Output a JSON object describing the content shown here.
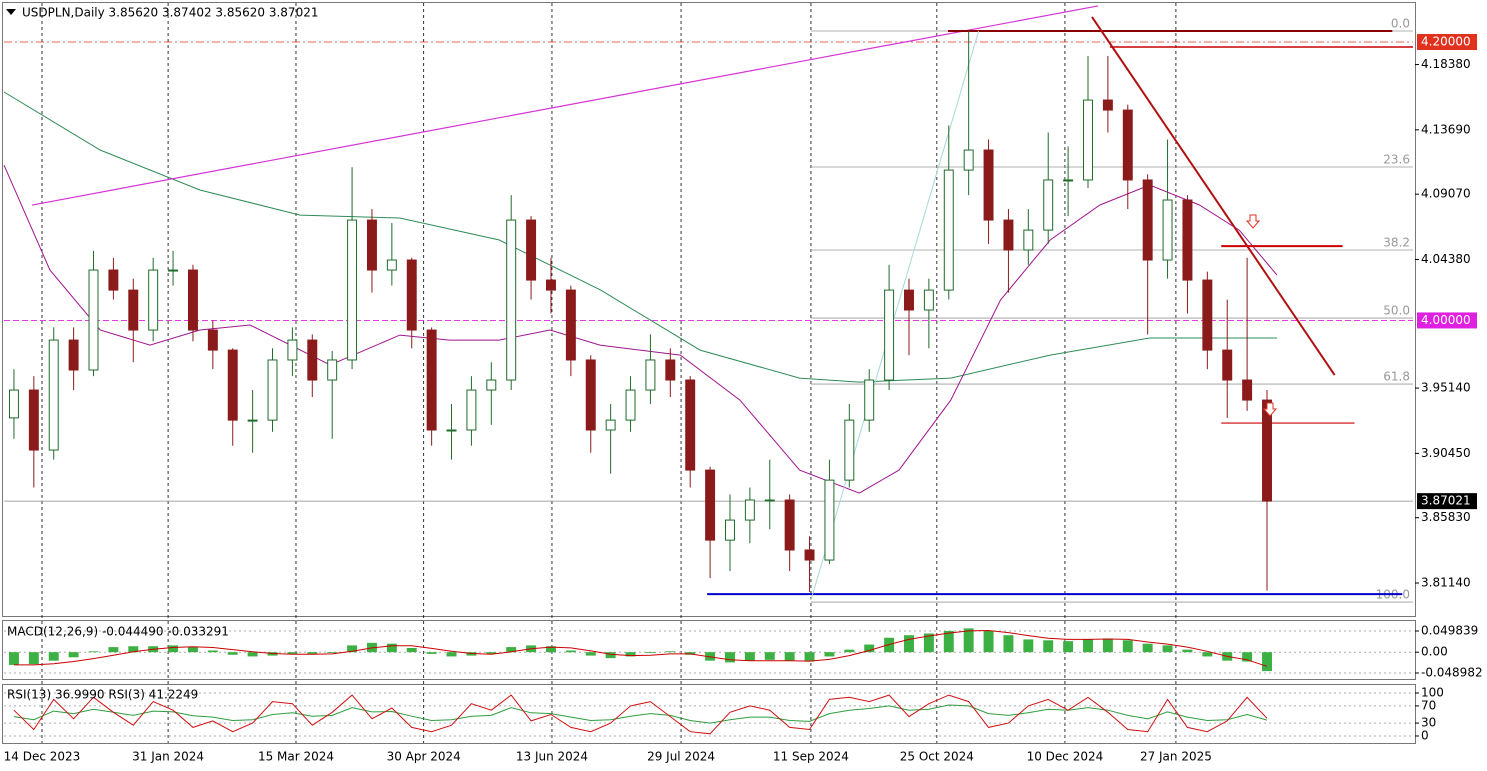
{
  "chart_data": [
    {
      "type": "candlestick",
      "title": "USDPLN,Daily  3.85620 3.87402 3.85620 3.87021",
      "xlim": [
        -0.5,
        70.34
      ],
      "ylim": [
        3.7877,
        4.2273
      ],
      "yticks": [
        {
          "value": 4.1838,
          "label": "4.18380"
        },
        {
          "value": 4.1369,
          "label": "4.13690"
        },
        {
          "value": 4.0907,
          "label": "4.09070"
        },
        {
          "value": 4.0438,
          "label": "4.04380"
        },
        {
          "value": 3.9514,
          "label": "3.95140"
        },
        {
          "value": 3.9045,
          "label": "3.90450"
        },
        {
          "value": 3.8583,
          "label": "3.85830"
        },
        {
          "value": 3.8114,
          "label": "3.81140"
        }
      ],
      "xticks": [
        {
          "value": 1.41,
          "label": "14 Dec 2023"
        },
        {
          "value": 7.75,
          "label": "31 Jan 2024"
        },
        {
          "value": 14.18,
          "label": "15 Mar 2024"
        },
        {
          "value": 20.6,
          "label": "30 Apr 2024"
        },
        {
          "value": 27.05,
          "label": "13 Jun 2024"
        },
        {
          "value": 33.54,
          "label": "29 Jul 2024"
        },
        {
          "value": 40.07,
          "label": "11 Sep 2024"
        },
        {
          "value": 46.4,
          "label": "25 Oct 2024"
        },
        {
          "value": 52.84,
          "label": "10 Dec 2024"
        },
        {
          "value": 58.42,
          "label": "27 Jan 2025"
        }
      ],
      "up_color": "#1f6b2a",
      "down_color": "#8b1a1a",
      "open": [
        3.93,
        3.95,
        3.9069,
        3.9859,
        3.9644,
        4.0362,
        4.0218,
        3.9931,
        4.0362,
        4.0362,
        3.9931,
        3.9787,
        3.9284,
        3.9284,
        3.9716,
        3.9859,
        3.9572,
        3.9716,
        4.0721,
        4.0362,
        4.0434,
        3.9931,
        3.9213,
        3.9213,
        3.95,
        3.9572,
        4.0721,
        4.029,
        4.0218,
        3.9716,
        3.9213,
        3.9284,
        3.95,
        3.9716,
        3.9572,
        3.8925,
        3.8422,
        3.8566,
        3.871,
        3.871,
        3.8351,
        3.8279,
        3.8853,
        3.9284,
        3.9572,
        4.0218,
        4.0075,
        4.0218,
        4.108,
        4.1224,
        4.0721,
        4.0506,
        4.0649,
        4.1009,
        4.1009,
        4.1583,
        4.1511,
        4.1009,
        4.0434,
        4.0865,
        4.029,
        3.9787,
        3.9572,
        3.9428
      ],
      "high": [
        3.965,
        3.96,
        3.995,
        3.995,
        4.05,
        4.045,
        4.03,
        4.045,
        4.05,
        4.04,
        4.0,
        3.98,
        3.95,
        3.98,
        3.995,
        3.99,
        3.978,
        4.11,
        4.08,
        4.07,
        4.045,
        3.995,
        3.94,
        3.96,
        3.97,
        4.09,
        4.075,
        4.045,
        4.025,
        3.975,
        3.94,
        3.96,
        3.99,
        3.98,
        3.96,
        3.895,
        3.875,
        3.88,
        3.9,
        3.875,
        3.845,
        3.9,
        3.94,
        3.965,
        4.04,
        4.03,
        4.03,
        4.14,
        4.2079,
        4.13,
        4.08,
        4.08,
        4.135,
        4.125,
        4.19,
        4.19,
        4.155,
        4.105,
        4.13,
        4.09,
        4.035,
        4.015,
        4.045,
        3.95
      ],
      "low": [
        3.915,
        3.88,
        3.9,
        3.95,
        3.96,
        4.015,
        3.97,
        3.985,
        4.025,
        3.985,
        3.965,
        3.91,
        3.905,
        3.92,
        3.96,
        3.945,
        3.915,
        3.965,
        4.02,
        4.025,
        3.98,
        3.91,
        3.9,
        3.91,
        3.925,
        3.95,
        4.015,
        4.005,
        3.96,
        3.905,
        3.89,
        3.92,
        3.94,
        3.945,
        3.88,
        3.815,
        3.82,
        3.84,
        3.85,
        3.82,
        3.805,
        3.825,
        3.88,
        3.92,
        3.95,
        3.975,
        3.98,
        4.015,
        4.09,
        4.055,
        4.02,
        4.04,
        4.055,
        4.075,
        4.095,
        4.135,
        4.08,
        3.99,
        4.03,
        4.005,
        3.965,
        3.93,
        3.935,
        3.806
      ],
      "close": [
        3.95,
        3.9069,
        3.9859,
        3.9644,
        4.0362,
        4.0218,
        3.9931,
        4.0362,
        4.0362,
        3.9931,
        3.9787,
        3.9284,
        3.9284,
        3.9716,
        3.9859,
        3.9572,
        3.9716,
        4.0721,
        4.0362,
        4.0434,
        3.9931,
        3.9213,
        3.9213,
        3.95,
        3.9572,
        4.0721,
        4.029,
        4.0218,
        3.9716,
        3.9213,
        3.9284,
        3.95,
        3.9716,
        3.9572,
        3.8925,
        3.8422,
        3.8566,
        3.871,
        3.871,
        3.8351,
        3.8279,
        3.8853,
        3.9284,
        3.9572,
        4.0218,
        4.0075,
        4.0218,
        4.108,
        4.1224,
        4.0721,
        4.0506,
        4.0649,
        4.1009,
        4.1009,
        4.1583,
        4.1511,
        4.1009,
        4.0434,
        4.0865,
        4.029,
        3.9787,
        3.9572,
        3.9428,
        3.87021
      ],
      "overlays": [
        {
          "color": "#2e8b57",
          "x": [
            -0.5,
            4.33,
            9.35,
            14.38,
            19.4,
            24.4,
            29.5,
            34.5,
            39.5,
            42.5,
            47.1,
            52.1,
            57.1,
            63.5
          ],
          "values": [
            4.1641,
            4.1224,
            4.0937,
            4.0757,
            4.0736,
            4.0578,
            4.0218,
            3.9787,
            3.9586,
            3.9557,
            3.9586,
            3.9751,
            3.9874,
            3.9874
          ]
        },
        {
          "color": "#a0158f",
          "x": [
            -0.5,
            1.81,
            4.33,
            6.84,
            9.35,
            11.87,
            15.9,
            19.4,
            21.9,
            24.4,
            26.95,
            29.46,
            33.5,
            36.5,
            39.5,
            42.5,
            44.5,
            47.1,
            49.6,
            52.1,
            54.6,
            57.1,
            59.6,
            61.6,
            63.5
          ],
          "values": [
            4.1116,
            4.0362,
            3.9931,
            3.9823,
            3.9931,
            3.9967,
            3.968,
            3.9895,
            3.9859,
            3.9859,
            3.9931,
            3.9823,
            3.9751,
            3.9428,
            3.8925,
            3.876,
            3.8925,
            3.9428,
            4.0147,
            4.0578,
            4.0829,
            4.0973,
            4.0829,
            4.0649,
            4.0326
          ]
        }
      ],
      "levels": [
        {
          "value": 4.2,
          "label": "4.20000",
          "color": "#e0301e",
          "style": "dashdot"
        },
        {
          "value": 4.0,
          "label": "4.00000",
          "color": "#e020e0",
          "style": "dash"
        },
        {
          "value": 3.87021,
          "label": "3.87021",
          "color": "#000000",
          "style": "solid"
        }
      ],
      "fib_x": [
        40.07,
        70.34
      ],
      "fib": [
        {
          "label": "0.0",
          "value": 4.2079
        },
        {
          "label": "23.6",
          "value": 4.1102
        },
        {
          "label": "38.2",
          "value": 4.0506
        },
        {
          "label": "50.0",
          "value": 4.0017
        },
        {
          "label": "61.8",
          "value": 3.9543
        },
        {
          "label": "100.0",
          "value": 3.7977
        }
      ],
      "lines": [
        {
          "x": [
            0.91,
            54.5
          ],
          "y": [
            4.0829,
            4.2259
          ],
          "color": "#d633d6",
          "width": 1.2
        },
        {
          "x": [
            46.96,
            69.3
          ],
          "y": [
            4.2079,
            4.2079
          ],
          "color": "#8b0000",
          "width": 2
        },
        {
          "x": [
            55.1,
            70.34
          ],
          "y": [
            4.1964,
            4.1964
          ],
          "color": "#cc0000",
          "width": 1.5
        },
        {
          "x": [
            54.2,
            66.4
          ],
          "y": [
            4.218,
            3.9608
          ],
          "color": "#b01010",
          "width": 2
        },
        {
          "x": [
            60.7,
            66.8
          ],
          "y": [
            4.0534,
            4.0534
          ],
          "color": "#cc0000",
          "width": 2
        },
        {
          "x": [
            60.7,
            67.4
          ],
          "y": [
            3.9263,
            3.9263
          ],
          "color": "#cc0000",
          "width": 1.2
        },
        {
          "x": [
            34.85,
            69.8
          ],
          "y": [
            3.8034,
            3.8034
          ],
          "color": "#0000cc",
          "width": 2
        },
        {
          "x": [
            40.07,
            48.5
          ],
          "y": [
            3.7991,
            4.2079
          ],
          "color": "#a8d8d8",
          "width": 1
        }
      ]
    },
    {
      "type": "macd",
      "title": "MACD(12,26,9) -0.044490 -0.033291",
      "ylim": [
        -0.0631,
        0.0734
      ],
      "yticks": [
        {
          "value": 0.049839,
          "label": "0.049839"
        },
        {
          "value": 0,
          "label": "0.00"
        },
        {
          "value": -0.048982,
          "label": "-0.048982"
        }
      ],
      "hist_color": "#3cb043",
      "signal_color": "#cc0000",
      "values": [
        -0.03,
        -0.028,
        -0.02,
        -0.012,
        0.002,
        0.012,
        0.014,
        0.014,
        0.016,
        0.012,
        0.004,
        -0.006,
        -0.01,
        -0.008,
        -0.004,
        -0.004,
        -0.002,
        0.016,
        0.022,
        0.02,
        0.01,
        -0.004,
        -0.01,
        -0.008,
        -0.004,
        0.012,
        0.016,
        0.014,
        0.004,
        -0.008,
        -0.014,
        -0.01,
        -0.002,
        0.002,
        -0.006,
        -0.02,
        -0.024,
        -0.02,
        -0.018,
        -0.02,
        -0.022,
        -0.01,
        0.006,
        0.018,
        0.034,
        0.04,
        0.044,
        0.05,
        0.056,
        0.05,
        0.04,
        0.03,
        0.028,
        0.026,
        0.03,
        0.032,
        0.028,
        0.02,
        0.016,
        0.006,
        -0.01,
        -0.02,
        -0.022,
        -0.04449
      ],
      "signal": [
        -0.03,
        -0.03,
        -0.027,
        -0.022,
        -0.015,
        -0.007,
        0.001,
        0.007,
        0.011,
        0.013,
        0.011,
        0.006,
        0.001,
        -0.003,
        -0.005,
        -0.005,
        -0.004,
        0.002,
        0.01,
        0.015,
        0.015,
        0.009,
        0.002,
        -0.003,
        -0.005,
        0.001,
        0.008,
        0.012,
        0.01,
        0.003,
        -0.005,
        -0.008,
        -0.007,
        -0.004,
        -0.004,
        -0.011,
        -0.018,
        -0.02,
        -0.02,
        -0.02,
        -0.021,
        -0.017,
        -0.008,
        0.004,
        0.018,
        0.03,
        0.038,
        0.045,
        0.05,
        0.051,
        0.046,
        0.039,
        0.033,
        0.03,
        0.03,
        0.031,
        0.03,
        0.024,
        0.019,
        0.012,
        0.002,
        -0.01,
        -0.018,
        -0.033291
      ]
    },
    {
      "type": "rsi",
      "title": "RSI(13) 36.9990  RSI(3) 41.2249",
      "ylim": [
        -16.3,
        118.6
      ],
      "yticks": [
        100,
        70,
        30,
        0
      ],
      "series": [
        {
          "color": "#2e9e3e",
          "values": [
            45,
            38,
            58,
            52,
            62,
            55,
            48,
            58,
            56,
            47,
            44,
            36,
            38,
            50,
            54,
            46,
            48,
            66,
            56,
            57,
            46,
            36,
            38,
            46,
            48,
            66,
            54,
            52,
            44,
            36,
            38,
            46,
            52,
            48,
            36,
            30,
            38,
            44,
            44,
            36,
            34,
            52,
            60,
            64,
            70,
            60,
            62,
            72,
            70,
            52,
            48,
            54,
            62,
            60,
            66,
            60,
            48,
            40,
            56,
            44,
            36,
            38,
            50,
            36.999
          ]
        },
        {
          "color": "#d01010",
          "values": [
            60,
            15,
            85,
            40,
            90,
            55,
            25,
            80,
            60,
            20,
            35,
            10,
            30,
            80,
            75,
            25,
            55,
            95,
            40,
            65,
            20,
            10,
            25,
            75,
            60,
            95,
            35,
            50,
            20,
            10,
            30,
            70,
            80,
            45,
            10,
            5,
            55,
            70,
            60,
            20,
            15,
            85,
            90,
            80,
            95,
            45,
            75,
            95,
            80,
            20,
            30,
            70,
            85,
            60,
            90,
            55,
            15,
            10,
            85,
            20,
            10,
            35,
            90,
            41.2249
          ]
        }
      ]
    }
  ]
}
